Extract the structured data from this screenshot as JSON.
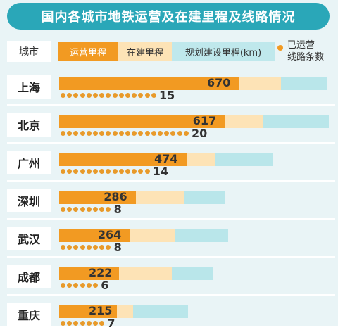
{
  "title": "国内各城市地铁运营及在建里程及线路情况",
  "legend": {
    "city_header": "城市",
    "operating": "运营里程",
    "construction": "在建里程",
    "planned": "规划建设里程(km)",
    "lines_line1": "已运营",
    "lines_line2": "线路条数"
  },
  "colors": {
    "operating": "#f29a22",
    "construction": "#fde3b6",
    "planned": "#b9e6ea",
    "title_bg": "#2aa7b8"
  },
  "chart_data": {
    "type": "bar",
    "title": "国内各城市地铁运营及在建里程及线路情况",
    "categories": [
      "上海",
      "北京",
      "广州",
      "深圳",
      "武汉",
      "成都",
      "重庆"
    ],
    "series": [
      {
        "name": "运营里程",
        "values": [
          670,
          617,
          474,
          286,
          264,
          222,
          215
        ]
      },
      {
        "name": "在建里程",
        "values": [
          155,
          143,
          108,
          178,
          168,
          196,
          60
        ]
      },
      {
        "name": "规划建设里程(km)",
        "values": [
          170,
          242,
          215,
          150,
          197,
          154,
          205
        ]
      }
    ],
    "lines": {
      "name": "已运营线路条数",
      "values": [
        15,
        20,
        14,
        8,
        8,
        6,
        7
      ]
    },
    "xlim": [
      0,
      1000
    ]
  }
}
